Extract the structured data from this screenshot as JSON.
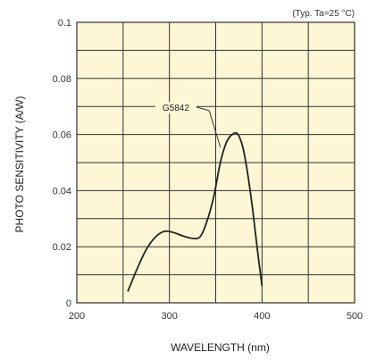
{
  "chart_data": {
    "type": "line",
    "note": "(Typ. Ta=25 °C)",
    "xlabel": "WAVELENGTH (nm)",
    "ylabel": "PHOTO SENSITIVITY (A/W)",
    "xlim": [
      200,
      500
    ],
    "ylim": [
      0,
      0.1
    ],
    "xticks": [
      200,
      300,
      400,
      500
    ],
    "xtick_labels": [
      "200",
      "300",
      "400",
      "500"
    ],
    "yticks": [
      0,
      0.02,
      0.04,
      0.06,
      0.08,
      0.1
    ],
    "ytick_labels": [
      "0",
      "0.02",
      "0.04",
      "0.06",
      "0.08",
      "0.1"
    ],
    "grid": true,
    "background_color": "#fdf7d6",
    "line_color": "#222222",
    "series": [
      {
        "name": "G5842",
        "x": [
          255,
          265,
          275,
          285,
          295,
          305,
          315,
          325,
          333,
          340,
          348,
          355,
          362,
          370,
          375,
          380,
          385,
          390,
          395,
          400
        ],
        "y": [
          0.004,
          0.012,
          0.019,
          0.0235,
          0.0255,
          0.025,
          0.0238,
          0.023,
          0.0235,
          0.0285,
          0.038,
          0.05,
          0.0575,
          0.0605,
          0.0595,
          0.0545,
          0.045,
          0.033,
          0.019,
          0.006
        ]
      }
    ]
  }
}
